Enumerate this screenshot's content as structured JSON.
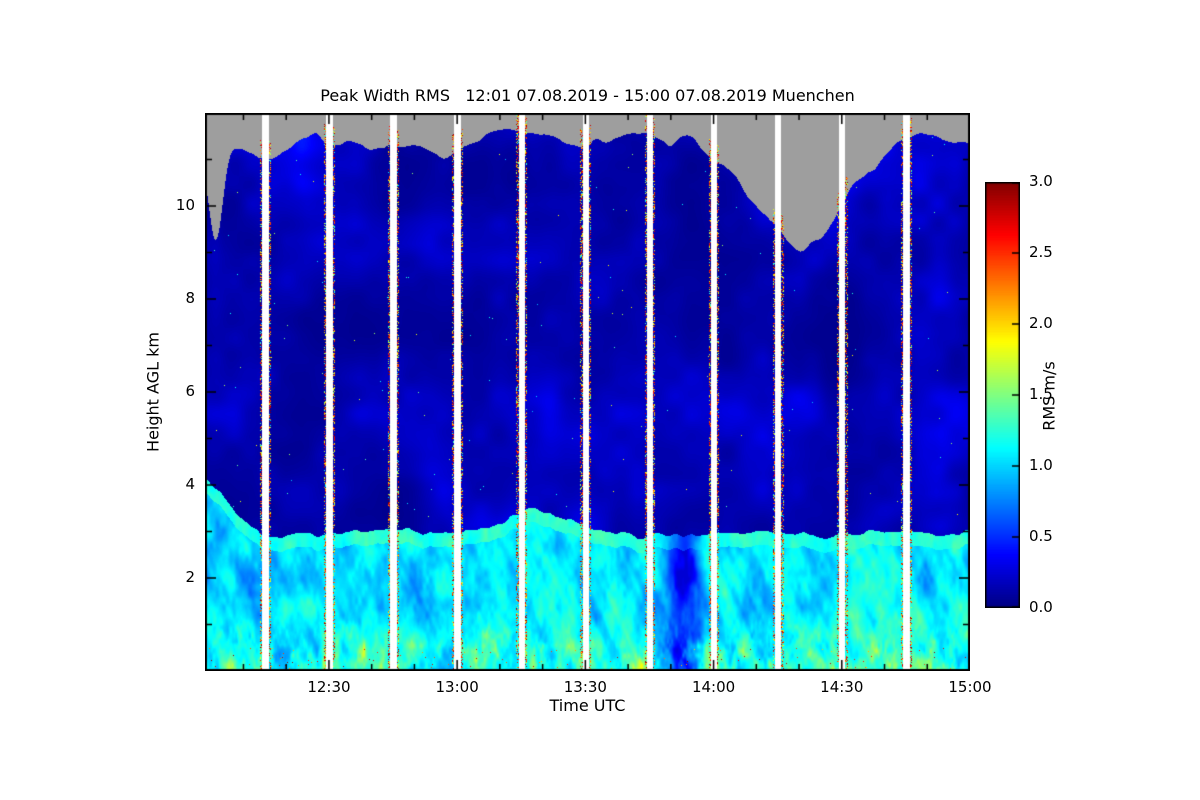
{
  "chart_data": {
    "type": "heatmap",
    "title": "Peak Width RMS   12:01 07.08.2019 - 15:00 07.08.2019 Muenchen",
    "xlabel": "Time UTC",
    "ylabel": "Height AGL km",
    "x_start": "12:01",
    "x_end": "15:00",
    "x_range_minutes": [
      721,
      900
    ],
    "x_ticks": [
      {
        "label": "12:30",
        "minutes": 750
      },
      {
        "label": "13:00",
        "minutes": 780
      },
      {
        "label": "13:30",
        "minutes": 810
      },
      {
        "label": "14:00",
        "minutes": 840
      },
      {
        "label": "14:30",
        "minutes": 870
      },
      {
        "label": "15:00",
        "minutes": 900
      }
    ],
    "x_minor_tick_step_minutes": 10,
    "y_range_km": [
      0,
      12
    ],
    "y_major_ticks": [
      2,
      4,
      6,
      8,
      10
    ],
    "y_minor_tick_step_km": 1,
    "colorbar": {
      "label": "RMS m/s",
      "ticks": [
        "0.0",
        "0.5",
        "1.0",
        "1.5",
        "2.0",
        "2.5",
        "3.0"
      ],
      "tick_values": [
        0,
        0.5,
        1,
        1.5,
        2,
        2.5,
        3
      ],
      "range": [
        0,
        3
      ]
    },
    "colormap": {
      "name": "jet",
      "stops": [
        [
          0,
          "#000080"
        ],
        [
          0.125,
          "#0000ff"
        ],
        [
          0.375,
          "#00ffff"
        ],
        [
          0.625,
          "#ffff00"
        ],
        [
          0.875,
          "#ff0000"
        ],
        [
          1,
          "#800000"
        ]
      ]
    },
    "no_data_color": "#9e9e9e",
    "gap_color": "#ffffff",
    "gap_times_utc": [
      "12:15",
      "12:30",
      "12:45",
      "13:00",
      "13:15",
      "13:30",
      "13:45",
      "14:00",
      "14:15",
      "14:30",
      "14:45"
    ],
    "features": {
      "description": "Time-height curtain of Doppler peak-width RMS: grey no-data region above the ~11 km cloud/aerosol top, dark-blue low-RMS free troposphere between ~3 and ~11 km, turbulent cyan-green convective boundary layer below ~3 km with diagonal fall-streak texture, yellow/orange patches and sparse red high-RMS specks near the ground, white vertical data-gap stripes every 15 minutes bordered by red/green speckle columns, and a grey intrusion (lower cloud top) around 14:20.",
      "cloud_top_km_mean": 11.3,
      "cloud_top_dip": {
        "center_utc": "14:20",
        "depth_km": 2.3
      },
      "boundary_layer_top_km": 3.0,
      "boundary_layer_rms_typical_m_s": 1.1,
      "free_troposphere_rms_typical_m_s": 0.1
    }
  }
}
